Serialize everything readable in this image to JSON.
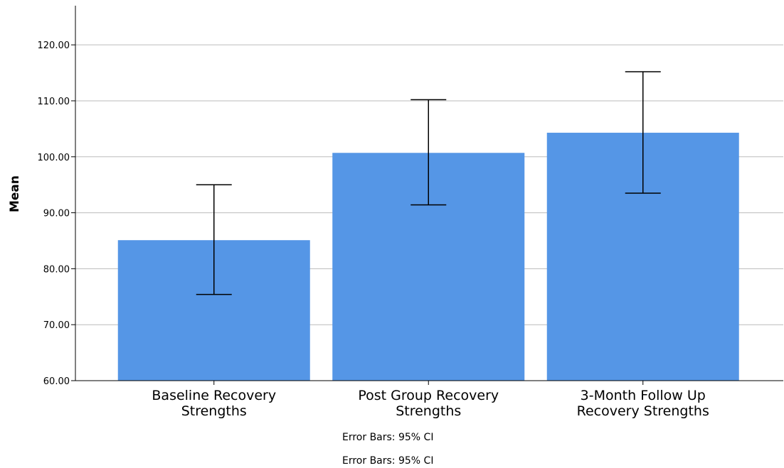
{
  "chart_data": {
    "type": "bar",
    "categories": [
      [
        "Baseline Recovery",
        "Strengths"
      ],
      [
        "Post Group Recovery",
        "Strengths"
      ],
      [
        "3-Month Follow Up",
        "Recovery Strengths"
      ]
    ],
    "values": [
      85.1,
      100.7,
      104.3
    ],
    "error_bars": [
      {
        "low": 75.4,
        "high": 95.0
      },
      {
        "low": 91.4,
        "high": 110.2
      },
      {
        "low": 93.5,
        "high": 115.2
      }
    ],
    "ylabel": "Mean",
    "xlabel": "",
    "title": "",
    "ylim": [
      60,
      127
    ],
    "yticks": [
      60,
      70,
      80,
      90,
      100,
      110,
      120
    ],
    "ytick_labels": [
      "60.00",
      "70.00",
      "80.00",
      "90.00",
      "100.00",
      "110.00",
      "120.00"
    ],
    "grid": true,
    "legend": "none",
    "footnotes": [
      "Error Bars: 95% CI",
      "Error Bars: 95% CI"
    ],
    "colors": {
      "bar": "#5596e6",
      "error_bar": "#000000",
      "grid": "#bbbbbb",
      "axis": "#000000"
    }
  }
}
